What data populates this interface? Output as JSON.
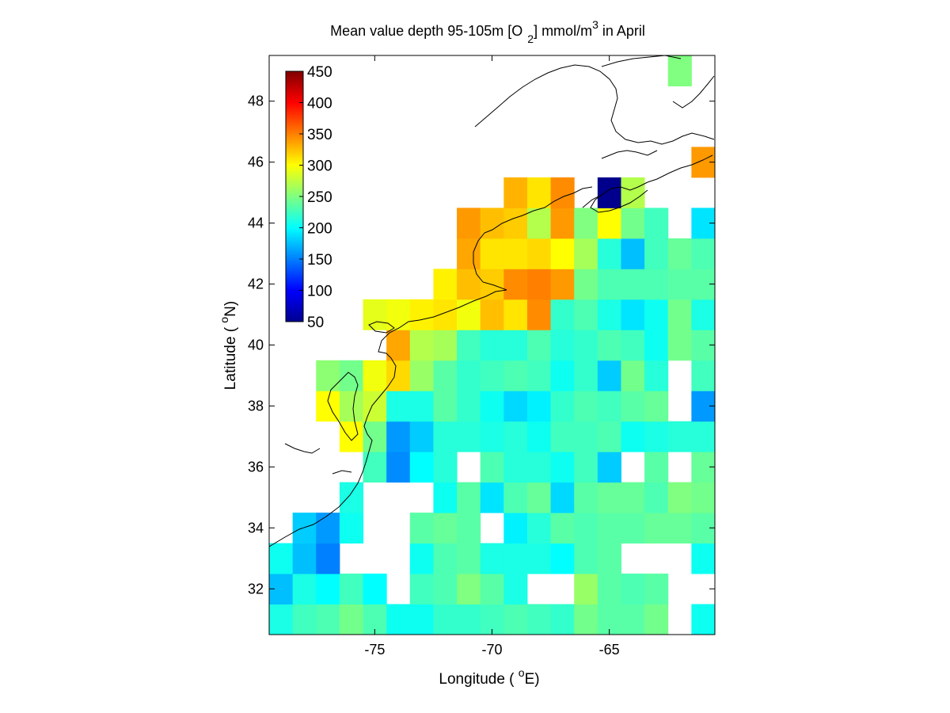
{
  "chart_data": {
    "type": "heatmap",
    "title": {
      "prefix": "Mean value depth 95-105m [O",
      "subscript": "2",
      "middle": "] mmol/m",
      "superscript": "3",
      "suffix": " in April"
    },
    "xlabel": {
      "prefix": "Longitude ( ",
      "superscript": "o",
      "suffix": "E)"
    },
    "ylabel": {
      "prefix": "Latitude ( ",
      "superscript": "o",
      "suffix": "N)"
    },
    "xlim": [
      -79.5,
      -60.5
    ],
    "ylim": [
      30.5,
      49.5
    ],
    "x_ticks": [
      -75,
      -70,
      -65
    ],
    "x_tick_labels": [
      "-75",
      "-70",
      "-65"
    ],
    "y_ticks": [
      32,
      34,
      36,
      38,
      40,
      42,
      44,
      46,
      48
    ],
    "y_tick_labels": [
      "32",
      "34",
      "36",
      "38",
      "40",
      "42",
      "44",
      "46",
      "48"
    ],
    "grid": false,
    "colormap": "jet",
    "color_limits": [
      50,
      450
    ],
    "colorbar_ticks": [
      50,
      100,
      150,
      200,
      250,
      300,
      350,
      400,
      450
    ],
    "colorbar_tick_labels": [
      "50",
      "100",
      "150",
      "200",
      "250",
      "300",
      "350",
      "400",
      "450"
    ],
    "colorbar_location": "top-left inside",
    "cell_size_deg": 1,
    "cells": [
      {
        "lon": -79,
        "lat": 31,
        "v": 210
      },
      {
        "lon": -78,
        "lat": 31,
        "v": 225
      },
      {
        "lon": -77,
        "lat": 31,
        "v": 230
      },
      {
        "lon": -76,
        "lat": 31,
        "v": 245
      },
      {
        "lon": -75,
        "lat": 31,
        "v": 230
      },
      {
        "lon": -74,
        "lat": 31,
        "v": 205
      },
      {
        "lon": -73,
        "lat": 31,
        "v": 205
      },
      {
        "lon": -72,
        "lat": 31,
        "v": 220
      },
      {
        "lon": -71,
        "lat": 31,
        "v": 220
      },
      {
        "lon": -70,
        "lat": 31,
        "v": 225
      },
      {
        "lon": -69,
        "lat": 31,
        "v": 230
      },
      {
        "lon": -68,
        "lat": 31,
        "v": 225
      },
      {
        "lon": -67,
        "lat": 31,
        "v": 220
      },
      {
        "lon": -66,
        "lat": 31,
        "v": 245
      },
      {
        "lon": -65,
        "lat": 31,
        "v": 235
      },
      {
        "lon": -64,
        "lat": 31,
        "v": 235
      },
      {
        "lon": -63,
        "lat": 31,
        "v": 245
      },
      {
        "lon": -61,
        "lat": 31,
        "v": 205
      },
      {
        "lon": -79,
        "lat": 32,
        "v": 175
      },
      {
        "lon": -78,
        "lat": 32,
        "v": 210
      },
      {
        "lon": -77,
        "lat": 32,
        "v": 200
      },
      {
        "lon": -76,
        "lat": 32,
        "v": 225
      },
      {
        "lon": -75,
        "lat": 32,
        "v": 200
      },
      {
        "lon": -73,
        "lat": 32,
        "v": 225
      },
      {
        "lon": -72,
        "lat": 32,
        "v": 230
      },
      {
        "lon": -71,
        "lat": 32,
        "v": 250
      },
      {
        "lon": -70,
        "lat": 32,
        "v": 235
      },
      {
        "lon": -69,
        "lat": 32,
        "v": 210
      },
      {
        "lon": -66,
        "lat": 32,
        "v": 260
      },
      {
        "lon": -65,
        "lat": 32,
        "v": 235
      },
      {
        "lon": -64,
        "lat": 32,
        "v": 230
      },
      {
        "lon": -63,
        "lat": 32,
        "v": 235
      },
      {
        "lon": -79,
        "lat": 33,
        "v": 205
      },
      {
        "lon": -78,
        "lat": 33,
        "v": 175
      },
      {
        "lon": -77,
        "lat": 33,
        "v": 150
      },
      {
        "lon": -73,
        "lat": 33,
        "v": 205
      },
      {
        "lon": -72,
        "lat": 33,
        "v": 230
      },
      {
        "lon": -71,
        "lat": 33,
        "v": 235
      },
      {
        "lon": -70,
        "lat": 33,
        "v": 210
      },
      {
        "lon": -69,
        "lat": 33,
        "v": 210
      },
      {
        "lon": -68,
        "lat": 33,
        "v": 210
      },
      {
        "lon": -67,
        "lat": 33,
        "v": 200
      },
      {
        "lon": -66,
        "lat": 33,
        "v": 230
      },
      {
        "lon": -65,
        "lat": 33,
        "v": 235
      },
      {
        "lon": -61,
        "lat": 33,
        "v": 205
      },
      {
        "lon": -78,
        "lat": 34,
        "v": 180
      },
      {
        "lon": -77,
        "lat": 34,
        "v": 160
      },
      {
        "lon": -76,
        "lat": 34,
        "v": 205
      },
      {
        "lon": -73,
        "lat": 34,
        "v": 235
      },
      {
        "lon": -72,
        "lat": 34,
        "v": 240
      },
      {
        "lon": -71,
        "lat": 34,
        "v": 235
      },
      {
        "lon": -69,
        "lat": 34,
        "v": 195
      },
      {
        "lon": -68,
        "lat": 34,
        "v": 215
      },
      {
        "lon": -67,
        "lat": 34,
        "v": 235
      },
      {
        "lon": -66,
        "lat": 34,
        "v": 230
      },
      {
        "lon": -65,
        "lat": 34,
        "v": 235
      },
      {
        "lon": -64,
        "lat": 34,
        "v": 235
      },
      {
        "lon": -63,
        "lat": 34,
        "v": 240
      },
      {
        "lon": -62,
        "lat": 34,
        "v": 240
      },
      {
        "lon": -61,
        "lat": 34,
        "v": 235
      },
      {
        "lon": -76,
        "lat": 35,
        "v": 210
      },
      {
        "lon": -72,
        "lat": 35,
        "v": 205
      },
      {
        "lon": -71,
        "lat": 35,
        "v": 235
      },
      {
        "lon": -70,
        "lat": 35,
        "v": 190
      },
      {
        "lon": -69,
        "lat": 35,
        "v": 230
      },
      {
        "lon": -68,
        "lat": 35,
        "v": 240
      },
      {
        "lon": -67,
        "lat": 35,
        "v": 185
      },
      {
        "lon": -66,
        "lat": 35,
        "v": 235
      },
      {
        "lon": -65,
        "lat": 35,
        "v": 240
      },
      {
        "lon": -64,
        "lat": 35,
        "v": 240
      },
      {
        "lon": -63,
        "lat": 35,
        "v": 230
      },
      {
        "lon": -62,
        "lat": 35,
        "v": 250
      },
      {
        "lon": -61,
        "lat": 35,
        "v": 245
      },
      {
        "lon": -75,
        "lat": 36,
        "v": 225
      },
      {
        "lon": -74,
        "lat": 36,
        "v": 155
      },
      {
        "lon": -73,
        "lat": 36,
        "v": 200
      },
      {
        "lon": -72,
        "lat": 36,
        "v": 215
      },
      {
        "lon": -70,
        "lat": 36,
        "v": 230
      },
      {
        "lon": -69,
        "lat": 36,
        "v": 215
      },
      {
        "lon": -68,
        "lat": 36,
        "v": 215
      },
      {
        "lon": -67,
        "lat": 36,
        "v": 205
      },
      {
        "lon": -66,
        "lat": 36,
        "v": 225
      },
      {
        "lon": -65,
        "lat": 36,
        "v": 180
      },
      {
        "lon": -63,
        "lat": 36,
        "v": 235
      },
      {
        "lon": -61,
        "lat": 36,
        "v": 240
      },
      {
        "lon": -76,
        "lat": 37,
        "v": 300
      },
      {
        "lon": -75,
        "lat": 37,
        "v": 245
      },
      {
        "lon": -74,
        "lat": 37,
        "v": 160
      },
      {
        "lon": -73,
        "lat": 37,
        "v": 180
      },
      {
        "lon": -72,
        "lat": 37,
        "v": 215
      },
      {
        "lon": -71,
        "lat": 37,
        "v": 215
      },
      {
        "lon": -70,
        "lat": 37,
        "v": 210
      },
      {
        "lon": -69,
        "lat": 37,
        "v": 215
      },
      {
        "lon": -68,
        "lat": 37,
        "v": 205
      },
      {
        "lon": -67,
        "lat": 37,
        "v": 225
      },
      {
        "lon": -66,
        "lat": 37,
        "v": 225
      },
      {
        "lon": -65,
        "lat": 37,
        "v": 230
      },
      {
        "lon": -64,
        "lat": 37,
        "v": 205
      },
      {
        "lon": -63,
        "lat": 37,
        "v": 210
      },
      {
        "lon": -62,
        "lat": 37,
        "v": 215
      },
      {
        "lon": -61,
        "lat": 37,
        "v": 215
      },
      {
        "lon": -77,
        "lat": 38,
        "v": 300
      },
      {
        "lon": -76,
        "lat": 38,
        "v": 265
      },
      {
        "lon": -75,
        "lat": 38,
        "v": 280
      },
      {
        "lon": -74,
        "lat": 38,
        "v": 210
      },
      {
        "lon": -73,
        "lat": 38,
        "v": 210
      },
      {
        "lon": -72,
        "lat": 38,
        "v": 235
      },
      {
        "lon": -71,
        "lat": 38,
        "v": 220
      },
      {
        "lon": -70,
        "lat": 38,
        "v": 205
      },
      {
        "lon": -69,
        "lat": 38,
        "v": 185
      },
      {
        "lon": -68,
        "lat": 38,
        "v": 195
      },
      {
        "lon": -67,
        "lat": 38,
        "v": 220
      },
      {
        "lon": -66,
        "lat": 38,
        "v": 230
      },
      {
        "lon": -65,
        "lat": 38,
        "v": 225
      },
      {
        "lon": -64,
        "lat": 38,
        "v": 235
      },
      {
        "lon": -63,
        "lat": 38,
        "v": 240
      },
      {
        "lon": -61,
        "lat": 38,
        "v": 160
      },
      {
        "lon": -77,
        "lat": 39,
        "v": 255
      },
      {
        "lon": -76,
        "lat": 39,
        "v": 245
      },
      {
        "lon": -75,
        "lat": 39,
        "v": 295
      },
      {
        "lon": -74,
        "lat": 39,
        "v": 315
      },
      {
        "lon": -73,
        "lat": 39,
        "v": 260
      },
      {
        "lon": -72,
        "lat": 39,
        "v": 235
      },
      {
        "lon": -71,
        "lat": 39,
        "v": 220
      },
      {
        "lon": -70,
        "lat": 39,
        "v": 225
      },
      {
        "lon": -69,
        "lat": 39,
        "v": 230
      },
      {
        "lon": -68,
        "lat": 39,
        "v": 225
      },
      {
        "lon": -67,
        "lat": 39,
        "v": 205
      },
      {
        "lon": -66,
        "lat": 39,
        "v": 220
      },
      {
        "lon": -65,
        "lat": 39,
        "v": 180
      },
      {
        "lon": -64,
        "lat": 39,
        "v": 245
      },
      {
        "lon": -63,
        "lat": 39,
        "v": 215
      },
      {
        "lon": -61,
        "lat": 39,
        "v": 225
      },
      {
        "lon": -74,
        "lat": 40,
        "v": 335
      },
      {
        "lon": -73,
        "lat": 40,
        "v": 270
      },
      {
        "lon": -72,
        "lat": 40,
        "v": 265
      },
      {
        "lon": -71,
        "lat": 40,
        "v": 225
      },
      {
        "lon": -70,
        "lat": 40,
        "v": 215
      },
      {
        "lon": -69,
        "lat": 40,
        "v": 215
      },
      {
        "lon": -68,
        "lat": 40,
        "v": 230
      },
      {
        "lon": -67,
        "lat": 40,
        "v": 215
      },
      {
        "lon": -66,
        "lat": 40,
        "v": 220
      },
      {
        "lon": -65,
        "lat": 40,
        "v": 230
      },
      {
        "lon": -64,
        "lat": 40,
        "v": 225
      },
      {
        "lon": -63,
        "lat": 40,
        "v": 205
      },
      {
        "lon": -62,
        "lat": 40,
        "v": 245
      },
      {
        "lon": -61,
        "lat": 40,
        "v": 235
      },
      {
        "lon": -75,
        "lat": 41,
        "v": 290
      },
      {
        "lon": -74,
        "lat": 41,
        "v": 295
      },
      {
        "lon": -73,
        "lat": 41,
        "v": 305
      },
      {
        "lon": -72,
        "lat": 41,
        "v": 310
      },
      {
        "lon": -71,
        "lat": 41,
        "v": 295
      },
      {
        "lon": -70,
        "lat": 41,
        "v": 325
      },
      {
        "lon": -69,
        "lat": 41,
        "v": 310
      },
      {
        "lon": -68,
        "lat": 41,
        "v": 345
      },
      {
        "lon": -67,
        "lat": 41,
        "v": 220
      },
      {
        "lon": -66,
        "lat": 41,
        "v": 230
      },
      {
        "lon": -65,
        "lat": 41,
        "v": 210
      },
      {
        "lon": -64,
        "lat": 41,
        "v": 190
      },
      {
        "lon": -63,
        "lat": 41,
        "v": 205
      },
      {
        "lon": -62,
        "lat": 41,
        "v": 245
      },
      {
        "lon": -61,
        "lat": 41,
        "v": 210
      },
      {
        "lon": -72,
        "lat": 42,
        "v": 305
      },
      {
        "lon": -71,
        "lat": 42,
        "v": 325
      },
      {
        "lon": -70,
        "lat": 42,
        "v": 320
      },
      {
        "lon": -69,
        "lat": 42,
        "v": 345
      },
      {
        "lon": -68,
        "lat": 42,
        "v": 350
      },
      {
        "lon": -67,
        "lat": 42,
        "v": 340
      },
      {
        "lon": -66,
        "lat": 42,
        "v": 245
      },
      {
        "lon": -65,
        "lat": 42,
        "v": 230
      },
      {
        "lon": -64,
        "lat": 42,
        "v": 230
      },
      {
        "lon": -63,
        "lat": 42,
        "v": 230
      },
      {
        "lon": -62,
        "lat": 42,
        "v": 235
      },
      {
        "lon": -61,
        "lat": 42,
        "v": 235
      },
      {
        "lon": -71,
        "lat": 43,
        "v": 335
      },
      {
        "lon": -70,
        "lat": 43,
        "v": 310
      },
      {
        "lon": -69,
        "lat": 43,
        "v": 310
      },
      {
        "lon": -68,
        "lat": 43,
        "v": 315
      },
      {
        "lon": -67,
        "lat": 43,
        "v": 300
      },
      {
        "lon": -66,
        "lat": 43,
        "v": 265
      },
      {
        "lon": -65,
        "lat": 43,
        "v": 215
      },
      {
        "lon": -64,
        "lat": 43,
        "v": 175
      },
      {
        "lon": -63,
        "lat": 43,
        "v": 225
      },
      {
        "lon": -62,
        "lat": 43,
        "v": 240
      },
      {
        "lon": -61,
        "lat": 43,
        "v": 230
      },
      {
        "lon": -71,
        "lat": 44,
        "v": 340
      },
      {
        "lon": -70,
        "lat": 44,
        "v": 325
      },
      {
        "lon": -69,
        "lat": 44,
        "v": 320
      },
      {
        "lon": -68,
        "lat": 44,
        "v": 270
      },
      {
        "lon": -67,
        "lat": 44,
        "v": 340
      },
      {
        "lon": -66,
        "lat": 44,
        "v": 250
      },
      {
        "lon": -65,
        "lat": 44,
        "v": 300
      },
      {
        "lon": -64,
        "lat": 44,
        "v": 245
      },
      {
        "lon": -63,
        "lat": 44,
        "v": 225
      },
      {
        "lon": -61,
        "lat": 44,
        "v": 190
      },
      {
        "lon": -69,
        "lat": 45,
        "v": 330
      },
      {
        "lon": -68,
        "lat": 45,
        "v": 310
      },
      {
        "lon": -67,
        "lat": 45,
        "v": 345
      },
      {
        "lon": -65,
        "lat": 45,
        "v": 55
      },
      {
        "lon": -64,
        "lat": 45,
        "v": 270
      },
      {
        "lon": -61,
        "lat": 46,
        "v": 340
      },
      {
        "lon": -62,
        "lat": 49,
        "v": 250
      }
    ]
  }
}
